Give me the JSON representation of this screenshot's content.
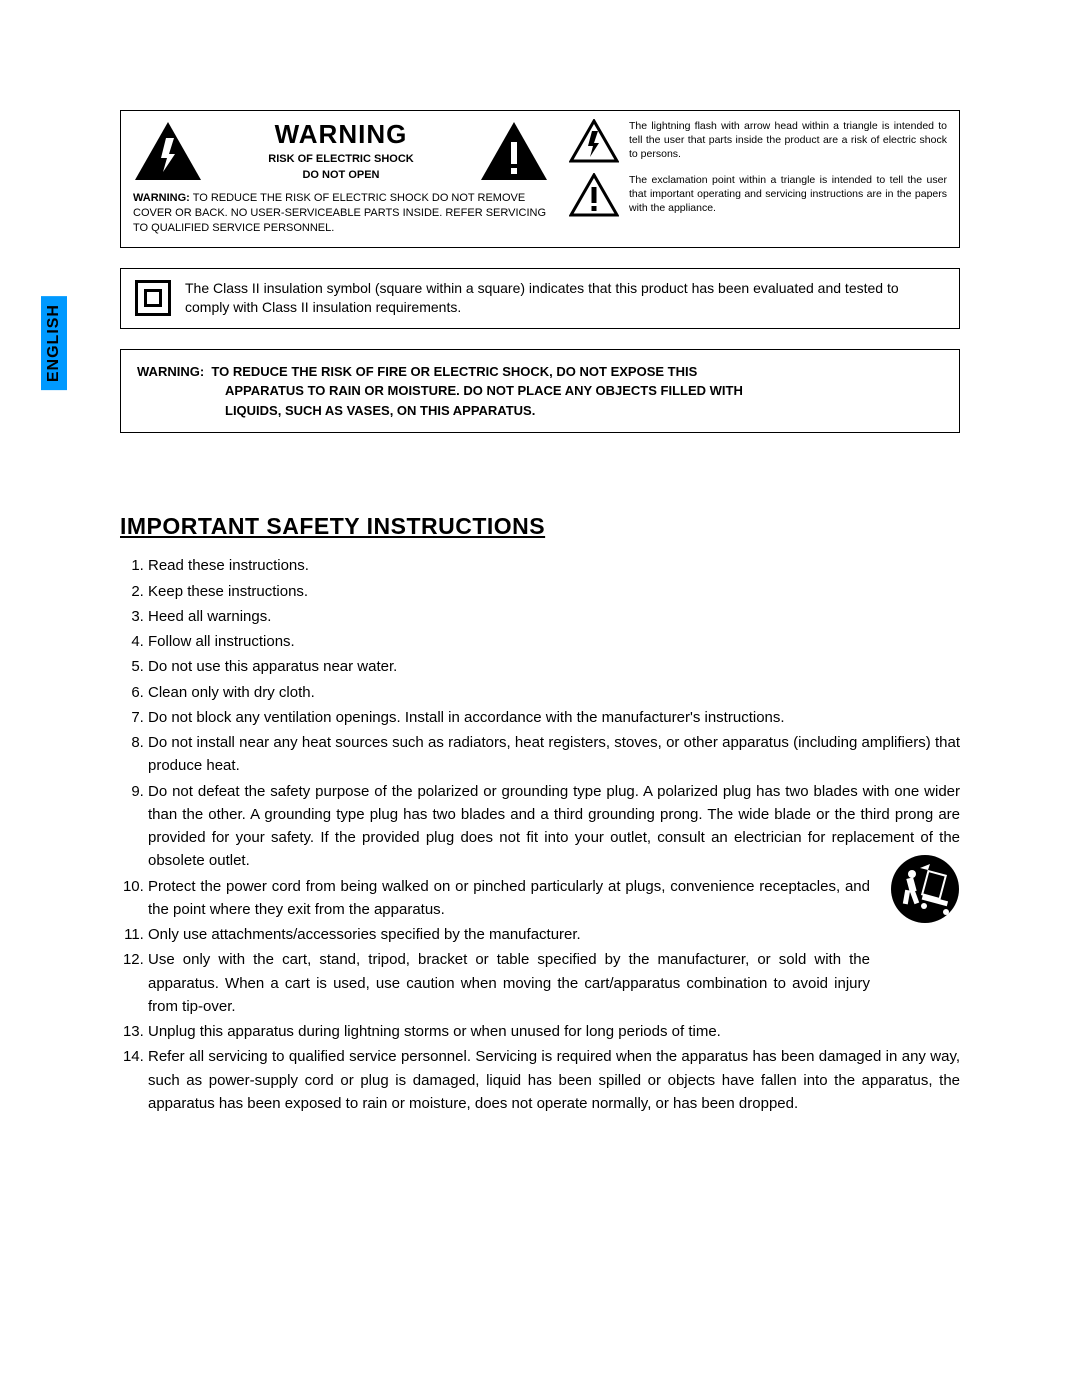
{
  "language_tab": "ENGLISH",
  "warning_box": {
    "title": "WARNING",
    "subtitle_line1": "RISK OF ELECTRIC SHOCK",
    "subtitle_line2": "DO NOT OPEN",
    "body_label": "WARNING:",
    "body_text": "TO REDUCE THE RISK OF ELECTRIC SHOCK DO NOT REMOVE COVER OR BACK. NO USER-SERVICEABLE PARTS INSIDE. REFER SERVICING TO QUALIFIED SERVICE PERSONNEL."
  },
  "symbol_explanations": {
    "lightning": "The lightning flash with arrow head within a triangle is intended to tell the user that parts inside the product are a risk of electric shock to persons.",
    "exclamation": "The exclamation point within a triangle is intended to tell the user that important operating and servicing instructions are in the papers with the appliance."
  },
  "class2_text": "The Class II insulation symbol (square within a square) indicates that this product has been evaluated and tested to comply with Class II insulation requirements.",
  "moisture_warning": {
    "label": "WARNING:",
    "line1": "TO REDUCE THE RISK OF FIRE OR ELECTRIC SHOCK, DO NOT EXPOSE THIS",
    "line2": "APPARATUS TO RAIN OR MOISTURE.  DO NOT PLACE ANY OBJECTS FILLED WITH",
    "line3": "LIQUIDS, SUCH AS VASES, ON THIS APPARATUS."
  },
  "section_title": "IMPORTANT SAFETY INSTRUCTIONS",
  "instructions": [
    "Read these instructions.",
    "Keep these instructions.",
    "Heed all warnings.",
    "Follow all instructions.",
    "Do not use this apparatus near water.",
    "Clean only with dry cloth.",
    "Do not block any ventilation openings. Install in accordance with the manufacturer's instructions.",
    "Do not install near any heat sources such as radiators, heat registers, stoves, or other apparatus (including amplifiers) that produce heat.",
    "Do not defeat the safety purpose of the polarized or grounding type plug. A polarized plug has two blades with one wider than the other. A grounding type plug has two blades and a third grounding prong. The wide blade or the third prong are provided for your safety. If the provided plug does not fit into your outlet, consult an electrician for replacement of the obsolete outlet.",
    "Protect the power cord from being walked on or pinched particularly at plugs, convenience receptacles, and the point where they exit from the apparatus.",
    "Only use attachments/accessories specified by the manufacturer.",
    "Use only with the cart, stand, tripod, bracket or table specified by the manufacturer, or sold with the apparatus. When a cart is used, use caution when moving the cart/apparatus combination to avoid injury from tip-over.",
    "Unplug this apparatus during lightning storms or when unused for long periods of time.",
    "Refer all servicing to qualified service personnel. Servicing is required when the apparatus has been damaged in any way, such as power-supply cord or plug is damaged, liquid has been spilled or objects have fallen into the apparatus, the apparatus has been exposed to rain or moisture, does not operate normally, or has been dropped."
  ],
  "narrow_indices": [
    9,
    10,
    11
  ],
  "colors": {
    "tab_bg": "#0099ff",
    "border": "#000000",
    "text": "#000000",
    "page_bg": "#ffffff"
  }
}
